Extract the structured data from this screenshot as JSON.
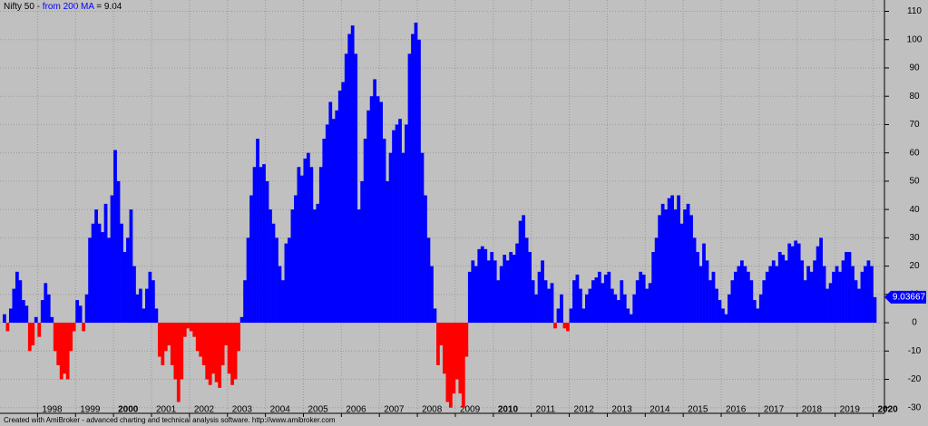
{
  "chart_data": {
    "type": "bar",
    "title_prefix": "Nifty 50 -",
    "title_series": "from 200 MA",
    "title_value": "= 9.04",
    "footer": "Created with AmiBroker - advanced charting and technical analysis software. http://www.amibroker.com",
    "last_value_label": "9.03667",
    "color": "#0000ff",
    "negative_color": "#ff0000",
    "ylim": [
      -32,
      114
    ],
    "yticks": [
      -30,
      -20,
      -10,
      0,
      10,
      20,
      30,
      40,
      50,
      60,
      70,
      80,
      90,
      100,
      110
    ],
    "grid": true,
    "categories": [
      null,
      null,
      null,
      null,
      null,
      null,
      null,
      null,
      null,
      null,
      null,
      "1998",
      null,
      null,
      null,
      null,
      null,
      null,
      null,
      null,
      null,
      null,
      null,
      "1999",
      null,
      null,
      null,
      null,
      null,
      null,
      null,
      null,
      null,
      null,
      null,
      "2000",
      null,
      null,
      null,
      null,
      null,
      null,
      null,
      null,
      null,
      null,
      null,
      "2001",
      null,
      null,
      null,
      null,
      null,
      null,
      null,
      null,
      null,
      null,
      null,
      "2002",
      null,
      null,
      null,
      null,
      null,
      null,
      null,
      null,
      null,
      null,
      null,
      "2003",
      null,
      null,
      null,
      null,
      null,
      null,
      null,
      null,
      null,
      null,
      null,
      "2004",
      null,
      null,
      null,
      null,
      null,
      null,
      null,
      null,
      null,
      null,
      null,
      "2005",
      null,
      null,
      null,
      null,
      null,
      null,
      null,
      null,
      null,
      null,
      null,
      "2006",
      null,
      null,
      null,
      null,
      null,
      null,
      null,
      null,
      null,
      null,
      null,
      "2007",
      null,
      null,
      null,
      null,
      null,
      null,
      null,
      null,
      null,
      null,
      null,
      "2008",
      null,
      null,
      null,
      null,
      null,
      null,
      null,
      null,
      null,
      null,
      null,
      "2009",
      null,
      null,
      null,
      null,
      null,
      null,
      null,
      null,
      null,
      null,
      null,
      "2010",
      null,
      null,
      null,
      null,
      null,
      null,
      null,
      null,
      null,
      null,
      null,
      "2011",
      null,
      null,
      null,
      null,
      null,
      null,
      null,
      null,
      null,
      null,
      null,
      "2012",
      null,
      null,
      null,
      null,
      null,
      null,
      null,
      null,
      null,
      null,
      null,
      "2013",
      null,
      null,
      null,
      null,
      null,
      null,
      null,
      null,
      null,
      null,
      null,
      "2014",
      null,
      null,
      null,
      null,
      null,
      null,
      null,
      null,
      null,
      null,
      null,
      "2015",
      null,
      null,
      null,
      null,
      null,
      null,
      null,
      null,
      null,
      null,
      null,
      "2016",
      null,
      null,
      null,
      null,
      null,
      null,
      null,
      null,
      null,
      null,
      null,
      "2017",
      null,
      null,
      null,
      null,
      null,
      null,
      null,
      null,
      null,
      null,
      null,
      "2018",
      null,
      null,
      null,
      null,
      null,
      null,
      null,
      null,
      null,
      null,
      null,
      "2019",
      null,
      null,
      null,
      null,
      null,
      null,
      null,
      null,
      null,
      null,
      null,
      "2020"
    ],
    "values": [
      3,
      -3,
      5,
      12,
      18,
      15,
      8,
      6,
      -10,
      -8,
      2,
      -5,
      8,
      14,
      10,
      2,
      -10,
      -15,
      -20,
      -18,
      -20,
      -10,
      -3,
      8,
      6,
      -3,
      10,
      30,
      35,
      40,
      35,
      32,
      42,
      30,
      45,
      61,
      50,
      35,
      25,
      30,
      40,
      20,
      10,
      12,
      5,
      12,
      18,
      15,
      5,
      -12,
      -15,
      -10,
      -8,
      -15,
      -20,
      -28,
      -20,
      -5,
      -2,
      -3,
      -5,
      -10,
      -12,
      -15,
      -20,
      -22,
      -18,
      -21,
      -23,
      -15,
      -8,
      -18,
      -22,
      -20,
      -10,
      2,
      15,
      30,
      45,
      55,
      65,
      55,
      56,
      50,
      40,
      35,
      30,
      20,
      15,
      28,
      30,
      40,
      45,
      55,
      52,
      58,
      60,
      55,
      40,
      42,
      55,
      65,
      70,
      78,
      72,
      75,
      82,
      85,
      95,
      102,
      105,
      95,
      40,
      50,
      65,
      75,
      80,
      86,
      80,
      78,
      65,
      50,
      60,
      68,
      70,
      72,
      60,
      70,
      95,
      102,
      106,
      100,
      60,
      45,
      30,
      20,
      5,
      -15,
      -8,
      -18,
      -28,
      -30,
      -25,
      -20,
      -25,
      -30,
      -12,
      18,
      22,
      20,
      26,
      27,
      26,
      22,
      25,
      22,
      15,
      20,
      24,
      22,
      25,
      24,
      28,
      36,
      38,
      30,
      25,
      15,
      10,
      18,
      22,
      15,
      12,
      14,
      -2,
      5,
      10,
      -2,
      -3,
      5,
      15,
      17,
      12,
      5,
      10,
      12,
      15,
      16,
      18,
      14,
      17,
      18,
      12,
      10,
      8,
      15,
      10,
      5,
      3,
      10,
      15,
      18,
      17,
      12,
      14,
      25,
      30,
      38,
      42,
      40,
      44,
      45,
      40,
      45,
      35,
      40,
      42,
      38,
      30,
      25,
      20,
      28,
      22,
      15,
      18,
      12,
      8,
      5,
      3,
      10,
      15,
      18,
      20,
      22,
      20,
      18,
      15,
      8,
      5,
      10,
      15,
      18,
      20,
      22,
      20,
      25,
      24,
      22,
      28,
      27,
      29,
      28,
      22,
      15,
      20,
      18,
      22,
      27,
      30,
      20,
      12,
      14,
      18,
      20,
      18,
      22,
      25,
      25,
      20,
      15,
      12,
      18,
      20,
      22,
      20,
      9.03667
    ]
  }
}
